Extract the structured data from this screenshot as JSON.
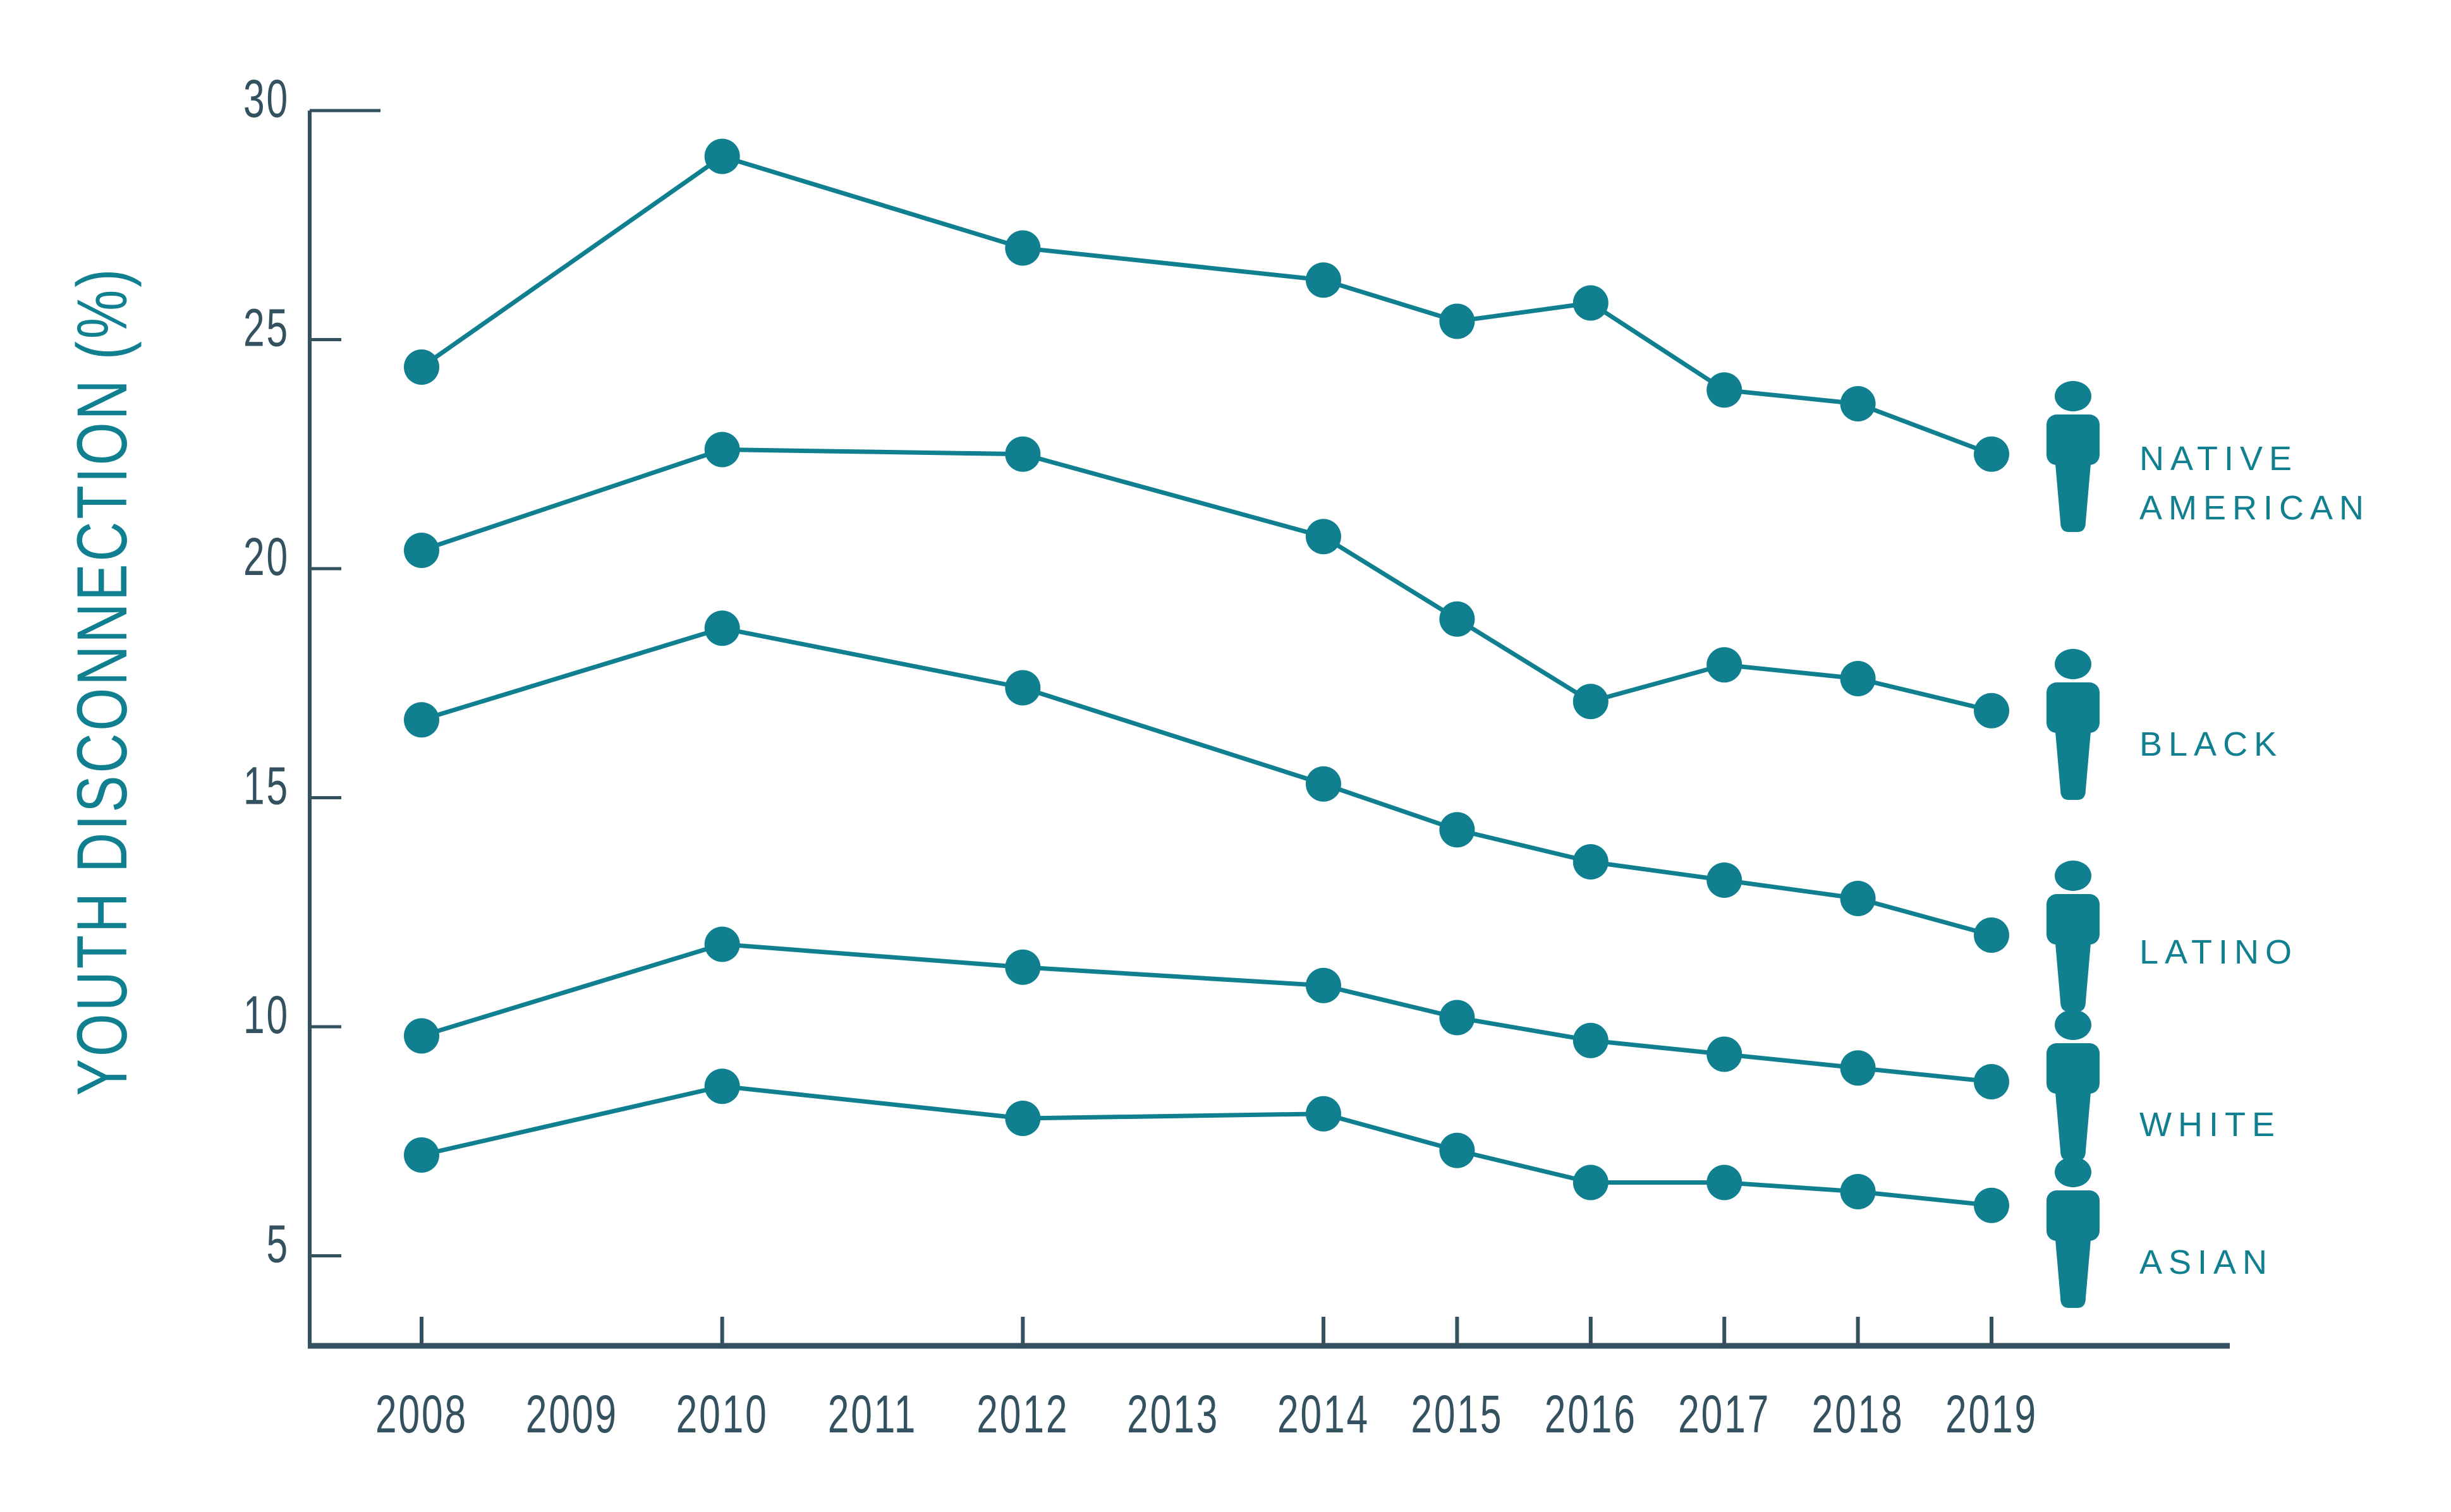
{
  "page": {
    "background_color": "#ffffff"
  },
  "chart_data": {
    "type": "line",
    "title": "",
    "xlabel": "",
    "ylabel": "YOUTH DISCONNECTION (%)",
    "x_tick_labels": [
      "2008",
      "2009",
      "2010",
      "2011",
      "2012",
      "2013",
      "2014",
      "2015",
      "2016",
      "2017",
      "2018",
      "2019"
    ],
    "y_tick_labels": [
      "30",
      "25",
      "20",
      "15",
      "10",
      "5"
    ],
    "ylim": [
      3,
      30
    ],
    "grid": false,
    "legend_position": "right",
    "legend_icon": "person",
    "marker": "circle",
    "x": [
      2008,
      2010,
      2012,
      2014,
      2015,
      2016,
      2017,
      2018,
      2019
    ],
    "series": [
      {
        "name": "Native American",
        "legend_lines": [
          "NATIVE",
          "AMERICAN"
        ],
        "values": [
          24.4,
          29.0,
          27.0,
          26.3,
          25.4,
          25.8,
          23.9,
          23.6,
          22.5
        ]
      },
      {
        "name": "Black",
        "legend_lines": [
          "BLACK"
        ],
        "values": [
          20.4,
          22.6,
          22.5,
          20.7,
          18.9,
          17.1,
          17.9,
          17.6,
          16.9
        ]
      },
      {
        "name": "Latino",
        "legend_lines": [
          "LATINO"
        ],
        "values": [
          16.7,
          18.7,
          17.4,
          15.3,
          14.3,
          13.6,
          13.2,
          12.8,
          12.0
        ]
      },
      {
        "name": "White",
        "legend_lines": [
          "WHITE"
        ],
        "values": [
          9.8,
          11.8,
          11.3,
          10.9,
          10.2,
          9.7,
          9.4,
          9.1,
          8.8
        ]
      },
      {
        "name": "Asian",
        "legend_lines": [
          "ASIAN"
        ],
        "values": [
          7.2,
          8.7,
          8.0,
          8.1,
          7.3,
          6.6,
          6.6,
          6.4,
          6.1
        ]
      }
    ],
    "colors": {
      "series": "#107F90",
      "axis": "#33515E",
      "tick_label": "#33515E",
      "axis_title": "#107F90",
      "legend_label": "#107F90"
    }
  }
}
